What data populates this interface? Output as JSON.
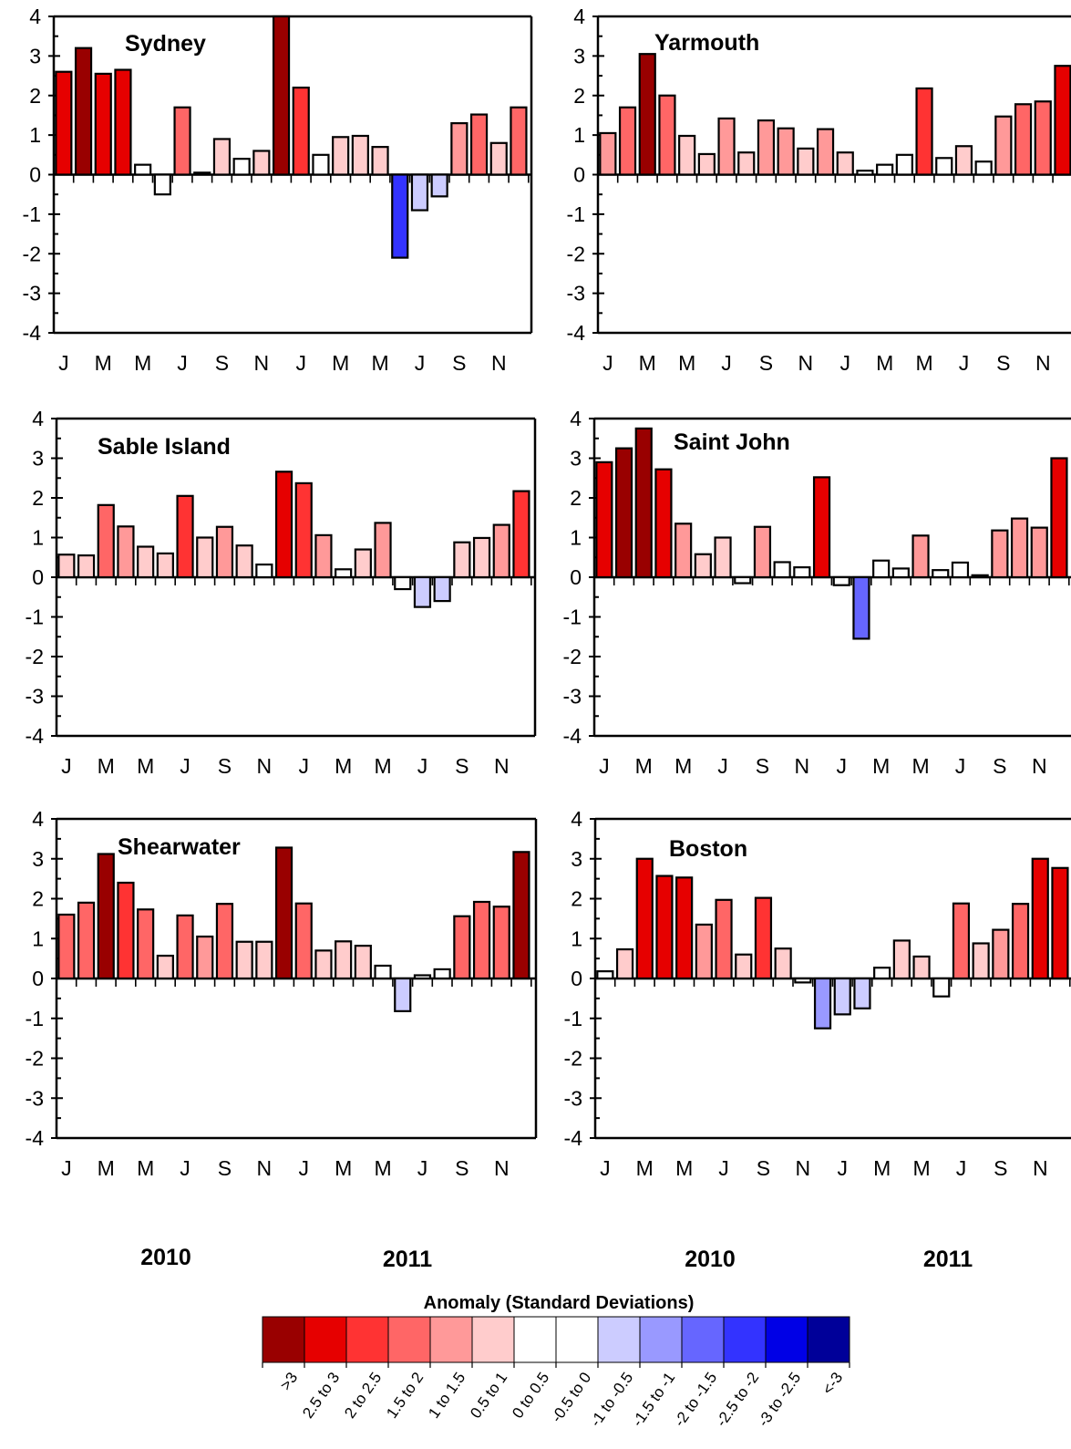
{
  "chart_data": [
    {
      "type": "bar",
      "title": "Sydney",
      "x_ticks": [
        "J",
        "M",
        "M",
        "J",
        "S",
        "N",
        "J",
        "M",
        "M",
        "J",
        "S",
        "N"
      ],
      "ylim": [
        -4,
        4
      ],
      "yticks": [
        "4",
        "3",
        "2",
        "1",
        "0",
        "-1",
        "-2",
        "-3",
        "-4"
      ],
      "categories": [
        "Jan 2010",
        "Feb 2010",
        "Mar 2010",
        "Apr 2010",
        "May 2010",
        "Jun 2010",
        "Jul 2010",
        "Aug 2010",
        "Sep 2010",
        "Oct 2010",
        "Nov 2010",
        "Dec 2010",
        "Jan 2011",
        "Feb 2011",
        "Mar 2011",
        "Apr 2011",
        "May 2011",
        "Jun 2011",
        "Jul 2011",
        "Aug 2011",
        "Sep 2011",
        "Oct 2011",
        "Nov 2011",
        "Dec 2011"
      ],
      "values": [
        2.6,
        3.2,
        2.55,
        2.65,
        0.25,
        -0.5,
        1.7,
        0.05,
        0.9,
        0.4,
        0.6,
        4.0,
        2.2,
        0.5,
        0.95,
        0.98,
        0.7,
        -2.1,
        -0.9,
        -0.55,
        1.3,
        1.52,
        0.8,
        1.7
      ]
    },
    {
      "type": "bar",
      "title": "Yarmouth",
      "x_ticks": [
        "J",
        "M",
        "M",
        "J",
        "S",
        "N",
        "J",
        "M",
        "M",
        "J",
        "S",
        "N"
      ],
      "ylim": [
        -4,
        4
      ],
      "yticks": [
        "4",
        "3",
        "2",
        "1",
        "0",
        "-1",
        "-2",
        "-3",
        "-4"
      ],
      "categories": [
        "Jan 2010",
        "Feb 2010",
        "Mar 2010",
        "Apr 2010",
        "May 2010",
        "Jun 2010",
        "Jul 2010",
        "Aug 2010",
        "Sep 2010",
        "Oct 2010",
        "Nov 2010",
        "Dec 2010",
        "Jan 2011",
        "Feb 2011",
        "Mar 2011",
        "Apr 2011",
        "May 2011",
        "Jun 2011",
        "Jul 2011",
        "Aug 2011",
        "Sep 2011",
        "Oct 2011",
        "Nov 2011",
        "Dec 2011"
      ],
      "values": [
        1.05,
        1.7,
        3.05,
        2.0,
        0.98,
        0.52,
        1.42,
        0.56,
        1.37,
        1.17,
        0.66,
        1.15,
        0.56,
        0.1,
        0.25,
        0.5,
        2.18,
        0.42,
        0.72,
        0.33,
        1.47,
        1.78,
        1.85,
        2.75
      ]
    },
    {
      "type": "bar",
      "title": "Sable Island",
      "x_ticks": [
        "J",
        "M",
        "M",
        "J",
        "S",
        "N",
        "J",
        "M",
        "M",
        "J",
        "S",
        "N"
      ],
      "ylim": [
        -4,
        4
      ],
      "yticks": [
        "4",
        "3",
        "2",
        "1",
        "0",
        "-1",
        "-2",
        "-3",
        "-4"
      ],
      "categories": [
        "Jan 2010",
        "Feb 2010",
        "Mar 2010",
        "Apr 2010",
        "May 2010",
        "Jun 2010",
        "Jul 2010",
        "Aug 2010",
        "Sep 2010",
        "Oct 2010",
        "Nov 2010",
        "Dec 2010",
        "Jan 2011",
        "Feb 2011",
        "Mar 2011",
        "Apr 2011",
        "May 2011",
        "Jun 2011",
        "Jul 2011",
        "Aug 2011",
        "Sep 2011",
        "Oct 2011",
        "Nov 2011",
        "Dec 2011"
      ],
      "values": [
        0.57,
        0.55,
        1.82,
        1.28,
        0.77,
        0.6,
        2.05,
        1.0,
        1.27,
        0.8,
        0.32,
        2.66,
        2.37,
        1.06,
        0.2,
        0.7,
        1.37,
        -0.3,
        -0.75,
        -0.6,
        0.88,
        0.99,
        1.32,
        2.17
      ]
    },
    {
      "type": "bar",
      "title": "Saint John",
      "x_ticks": [
        "J",
        "M",
        "M",
        "J",
        "S",
        "N",
        "J",
        "M",
        "M",
        "J",
        "S",
        "N"
      ],
      "ylim": [
        -4,
        4
      ],
      "yticks": [
        "4",
        "3",
        "2",
        "1",
        "0",
        "-1",
        "-2",
        "-3",
        "-4"
      ],
      "categories": [
        "Jan 2010",
        "Feb 2010",
        "Mar 2010",
        "Apr 2010",
        "May 2010",
        "Jun 2010",
        "Jul 2010",
        "Aug 2010",
        "Sep 2010",
        "Oct 2010",
        "Nov 2010",
        "Dec 2010",
        "Jan 2011",
        "Feb 2011",
        "Mar 2011",
        "Apr 2011",
        "May 2011",
        "Jun 2011",
        "Jul 2011",
        "Aug 2011",
        "Sep 2011",
        "Oct 2011",
        "Nov 2011",
        "Dec 2011"
      ],
      "values": [
        2.9,
        3.25,
        3.75,
        2.72,
        1.35,
        0.58,
        1.0,
        -0.15,
        1.27,
        0.38,
        0.25,
        2.52,
        -0.2,
        -1.55,
        0.42,
        0.22,
        1.05,
        0.18,
        0.37,
        0.05,
        1.18,
        1.48,
        1.25,
        3.0
      ]
    },
    {
      "type": "bar",
      "title": "Shearwater",
      "x_ticks": [
        "J",
        "M",
        "M",
        "J",
        "S",
        "N",
        "J",
        "M",
        "M",
        "J",
        "S",
        "N"
      ],
      "ylim": [
        -4,
        4
      ],
      "yticks": [
        "4",
        "3",
        "2",
        "1",
        "0",
        "-1",
        "-2",
        "-3",
        "-4"
      ],
      "categories": [
        "Jan 2010",
        "Feb 2010",
        "Mar 2010",
        "Apr 2010",
        "May 2010",
        "Jun 2010",
        "Jul 2010",
        "Aug 2010",
        "Sep 2010",
        "Oct 2010",
        "Nov 2010",
        "Dec 2010",
        "Jan 2011",
        "Feb 2011",
        "Mar 2011",
        "Apr 2011",
        "May 2011",
        "Jun 2011",
        "Jul 2011",
        "Aug 2011",
        "Sep 2011",
        "Oct 2011",
        "Nov 2011",
        "Dec 2011"
      ],
      "values": [
        1.6,
        1.9,
        3.12,
        2.4,
        1.73,
        0.57,
        1.58,
        1.05,
        1.87,
        0.92,
        0.92,
        3.28,
        1.88,
        0.7,
        0.93,
        0.82,
        0.32,
        -0.82,
        0.08,
        0.23,
        1.56,
        1.92,
        1.8,
        3.17
      ]
    },
    {
      "type": "bar",
      "title": "Boston",
      "x_ticks": [
        "J",
        "M",
        "M",
        "J",
        "S",
        "N",
        "J",
        "M",
        "M",
        "J",
        "S",
        "N"
      ],
      "ylim": [
        -4,
        4
      ],
      "yticks": [
        "4",
        "3",
        "2",
        "1",
        "0",
        "-1",
        "-2",
        "-3",
        "-4"
      ],
      "categories": [
        "Jan 2010",
        "Feb 2010",
        "Mar 2010",
        "Apr 2010",
        "May 2010",
        "Jun 2010",
        "Jul 2010",
        "Aug 2010",
        "Sep 2010",
        "Oct 2010",
        "Nov 2010",
        "Dec 2010",
        "Jan 2011",
        "Feb 2011",
        "Mar 2011",
        "Apr 2011",
        "May 2011",
        "Jun 2011",
        "Jul 2011",
        "Aug 2011",
        "Sep 2011",
        "Oct 2011",
        "Nov 2011",
        "Dec 2011"
      ],
      "values": [
        0.18,
        0.73,
        3.0,
        2.57,
        2.53,
        1.35,
        1.97,
        0.6,
        2.02,
        0.75,
        -0.1,
        -1.25,
        -0.9,
        -0.75,
        0.27,
        0.95,
        0.55,
        -0.45,
        1.88,
        0.88,
        1.22,
        1.87,
        3.0,
        2.77
      ]
    }
  ],
  "year_labels": [
    "2010",
    "2011",
    "2010",
    "2011"
  ],
  "legend": {
    "title": "Anomaly (Standard Deviations)",
    "items": [
      {
        "label": ">3",
        "color": "#990000",
        "min": 3,
        "max": null
      },
      {
        "label": "2.5 to 3",
        "color": "#e60000",
        "min": 2.5,
        "max": 3
      },
      {
        "label": "2 to 2.5",
        "color": "#ff3333",
        "min": 2,
        "max": 2.5
      },
      {
        "label": "1.5 to 2",
        "color": "#ff6666",
        "min": 1.5,
        "max": 2
      },
      {
        "label": "1 to 1.5",
        "color": "#ff9999",
        "min": 1,
        "max": 1.5
      },
      {
        "label": "0.5 to 1",
        "color": "#ffcccc",
        "min": 0.5,
        "max": 1
      },
      {
        "label": "0 to 0.5",
        "color": "#ffffff",
        "min": 0,
        "max": 0.5
      },
      {
        "label": "-0.5 to 0",
        "color": "#ffffff",
        "min": -0.5,
        "max": 0
      },
      {
        "label": "-1 to -0.5",
        "color": "#ccccff",
        "min": -1,
        "max": -0.5
      },
      {
        "label": "-1.5 to -1",
        "color": "#9999ff",
        "min": -1.5,
        "max": -1
      },
      {
        "label": "-2 to -1.5",
        "color": "#6666ff",
        "min": -2,
        "max": -1.5
      },
      {
        "label": "-2.5 to -2",
        "color": "#3333ff",
        "min": -2.5,
        "max": -2
      },
      {
        "label": "-3 to -2.5",
        "color": "#0000e6",
        "min": -3,
        "max": -2.5
      },
      {
        "label": "<-3",
        "color": "#000099",
        "min": null,
        "max": -3
      }
    ]
  }
}
